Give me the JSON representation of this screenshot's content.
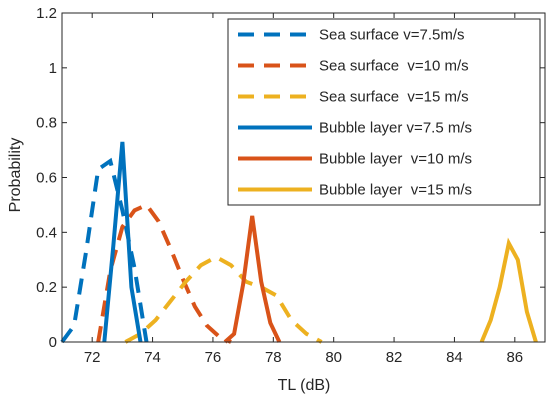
{
  "chart_data": {
    "type": "line",
    "xlabel": "TL (dB)",
    "ylabel": "Probability",
    "xlim": [
      71,
      87
    ],
    "ylim": [
      0,
      1.2
    ],
    "xticks": [
      "72",
      "74",
      "76",
      "78",
      "80",
      "82",
      "84",
      "86"
    ],
    "yticks": [
      "0",
      "0.2",
      "0.4",
      "0.6",
      "0.8",
      "1",
      "1.2"
    ],
    "grid": false,
    "legend_position": "top-right",
    "series": [
      {
        "name": "Sea surface v=7.5m/s",
        "color": "#0072BD",
        "style": "dashed",
        "x": [
          71.0,
          71.4,
          71.8,
          72.2,
          72.6,
          73.0,
          73.4,
          73.8
        ],
        "y": [
          0.0,
          0.06,
          0.33,
          0.63,
          0.66,
          0.48,
          0.27,
          0.0
        ]
      },
      {
        "name": "Sea surface  v=10 m/s",
        "color": "#D95319",
        "style": "dashed",
        "x": [
          72.2,
          72.6,
          73.0,
          73.4,
          73.8,
          74.2,
          74.6,
          75.0,
          75.4,
          75.8,
          76.2,
          76.6
        ],
        "y": [
          0.0,
          0.26,
          0.42,
          0.48,
          0.5,
          0.44,
          0.34,
          0.23,
          0.13,
          0.06,
          0.02,
          0.0
        ]
      },
      {
        "name": "Sea surface  v=15 m/s",
        "color": "#EDB120",
        "style": "dashed",
        "x": [
          73.1,
          73.6,
          74.1,
          74.6,
          75.1,
          75.6,
          76.1,
          76.6,
          77.1,
          77.6,
          78.1,
          78.6,
          79.1,
          79.6
        ],
        "y": [
          0.0,
          0.03,
          0.08,
          0.15,
          0.22,
          0.28,
          0.31,
          0.28,
          0.22,
          0.2,
          0.17,
          0.08,
          0.03,
          0.0
        ]
      },
      {
        "name": "Bubble layer v=7.5 m/s",
        "color": "#0072BD",
        "style": "solid",
        "x": [
          72.4,
          72.7,
          73.0,
          73.3,
          73.6
        ],
        "y": [
          0.0,
          0.35,
          0.73,
          0.2,
          0.0
        ]
      },
      {
        "name": "Bubble layer  v=10 m/s",
        "color": "#D95319",
        "style": "solid",
        "x": [
          76.4,
          76.7,
          77.0,
          77.3,
          77.6,
          77.9,
          78.2
        ],
        "y": [
          0.0,
          0.03,
          0.21,
          0.46,
          0.22,
          0.07,
          0.0
        ]
      },
      {
        "name": "Bubble layer  v=15 m/s",
        "color": "#EDB120",
        "style": "solid",
        "x": [
          84.9,
          85.2,
          85.5,
          85.8,
          86.1,
          86.4,
          86.7
        ],
        "y": [
          0.0,
          0.08,
          0.2,
          0.36,
          0.3,
          0.11,
          0.0
        ]
      }
    ]
  }
}
